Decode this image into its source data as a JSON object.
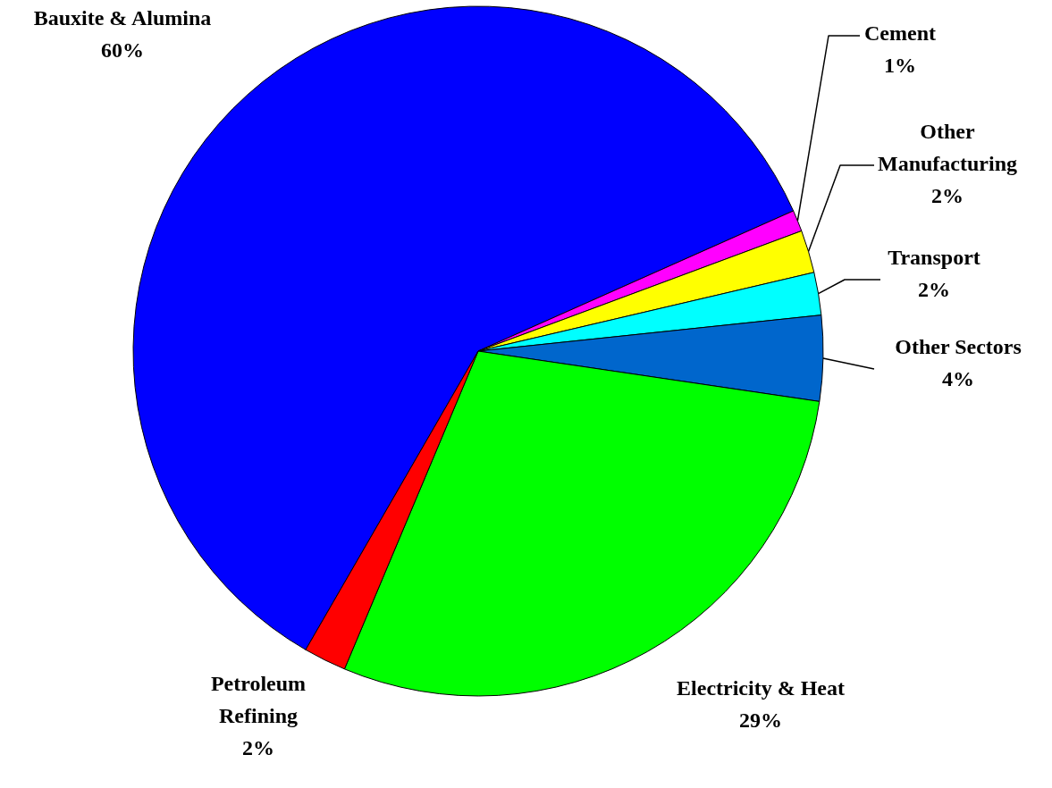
{
  "chart_data": {
    "type": "pie",
    "categories": [
      "Bauxite & Alumina",
      "Cement",
      "Other Manufacturing",
      "Transport",
      "Other Sectors",
      "Electricity & Heat",
      "Petroleum Refining"
    ],
    "values": [
      60,
      1,
      2,
      2,
      4,
      29,
      2
    ],
    "value_labels": [
      "60%",
      "1%",
      "2%",
      "2%",
      "4%",
      "29%",
      "2%"
    ],
    "colors": [
      "#0000ff",
      "#ff00ff",
      "#ffff00",
      "#00ffff",
      "#0066cc",
      "#00ff00",
      "#ff0000"
    ]
  }
}
